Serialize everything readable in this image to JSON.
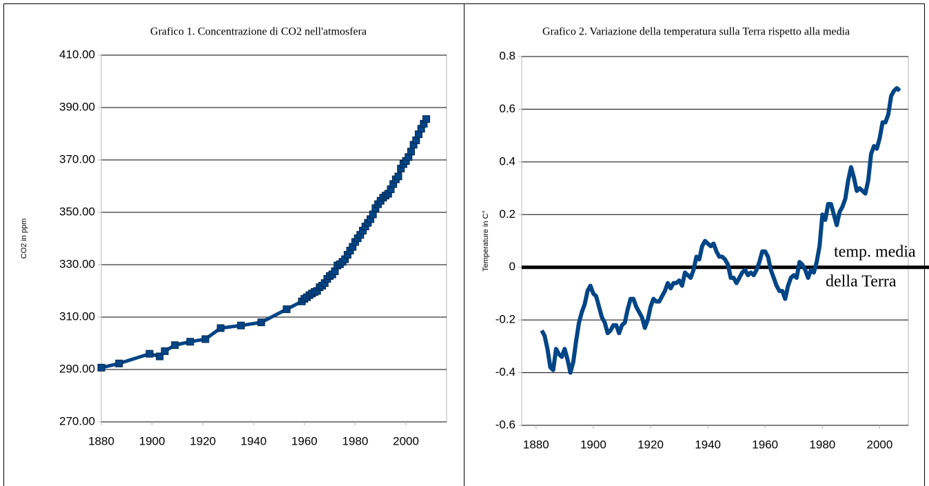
{
  "chart_data": [
    {
      "type": "line",
      "title": "Grafico 1. Concentrazione di CO2 nell'atmosfera",
      "y_label": "CO2  in ppm",
      "color": "#004586",
      "markers": true,
      "grid": true,
      "x": [
        1880,
        1887,
        1899,
        1903,
        1905,
        1909,
        1915,
        1921,
        1927,
        1935,
        1943,
        1953,
        1959,
        1960,
        1961,
        1962,
        1963,
        1964,
        1965,
        1966,
        1967,
        1968,
        1969,
        1970,
        1971,
        1972,
        1973,
        1974,
        1975,
        1976,
        1977,
        1978,
        1979,
        1980,
        1981,
        1982,
        1983,
        1984,
        1985,
        1986,
        1987,
        1988,
        1989,
        1990,
        1991,
        1992,
        1993,
        1994,
        1995,
        1996,
        1997,
        1998,
        1999,
        2000,
        2001,
        2002,
        2003,
        2004,
        2005,
        2006,
        2007,
        2008
      ],
      "values": [
        290.7,
        292.3,
        296,
        295,
        297,
        299.3,
        300.6,
        301.6,
        305.8,
        306.8,
        308,
        313,
        316,
        317,
        317.6,
        318.4,
        319,
        319.6,
        320,
        321.4,
        322,
        323,
        324.6,
        325.7,
        326.3,
        327.5,
        329.7,
        330.2,
        331.1,
        332.1,
        333.8,
        335.4,
        336.8,
        338.7,
        340.1,
        341.4,
        343,
        344.6,
        346,
        347.4,
        349.2,
        351.6,
        353.1,
        354.4,
        355.6,
        356.4,
        357.1,
        358.8,
        360.8,
        362.6,
        363.7,
        366.7,
        368.4,
        369.6,
        371.1,
        373.2,
        375.8,
        377.5,
        379.8,
        381.9,
        383.8,
        385.6
      ],
      "xlim": [
        1880,
        2016
      ],
      "xticks": [
        1880,
        1900,
        1920,
        1940,
        1960,
        1980,
        2000
      ],
      "ylim": [
        270,
        410
      ],
      "yticks": [
        {
          "value": 270,
          "label": "270.00"
        },
        {
          "value": 290,
          "label": "290.00"
        },
        {
          "value": 310,
          "label": "310.00"
        },
        {
          "value": 330,
          "label": "330.00"
        },
        {
          "value": 350,
          "label": "350.00"
        },
        {
          "value": 370,
          "label": "370.00"
        },
        {
          "value": 390,
          "label": "390.00"
        },
        {
          "value": 410,
          "label": "410.00"
        }
      ]
    },
    {
      "type": "line",
      "title": "Grafico 2. Variazione della temperatura sulla Terra rispetto alla media",
      "y_label": "Temperature in C°",
      "color": "#004586",
      "markers": false,
      "grid": true,
      "x": [
        1882,
        1883,
        1884,
        1885,
        1886,
        1887,
        1888,
        1889,
        1890,
        1891,
        1892,
        1893,
        1894,
        1895,
        1896,
        1897,
        1898,
        1899,
        1900,
        1901,
        1902,
        1903,
        1904,
        1905,
        1906,
        1907,
        1908,
        1909,
        1910,
        1911,
        1912,
        1913,
        1914,
        1915,
        1916,
        1917,
        1918,
        1919,
        1920,
        1921,
        1922,
        1923,
        1924,
        1925,
        1926,
        1927,
        1928,
        1929,
        1930,
        1931,
        1932,
        1933,
        1934,
        1935,
        1936,
        1937,
        1938,
        1939,
        1940,
        1941,
        1942,
        1943,
        1944,
        1945,
        1946,
        1947,
        1948,
        1949,
        1950,
        1951,
        1952,
        1953,
        1954,
        1955,
        1956,
        1957,
        1958,
        1959,
        1960,
        1961,
        1962,
        1963,
        1964,
        1965,
        1966,
        1967,
        1968,
        1969,
        1970,
        1971,
        1972,
        1973,
        1974,
        1975,
        1976,
        1977,
        1978,
        1979,
        1980,
        1981,
        1982,
        1983,
        1984,
        1985,
        1986,
        1987,
        1988,
        1989,
        1990,
        1991,
        1992,
        1993,
        1994,
        1995,
        1996,
        1997,
        1998,
        1999,
        2000,
        2001,
        2002,
        2003,
        2004,
        2005,
        2006,
        2007
      ],
      "values": [
        -0.24,
        -0.26,
        -0.31,
        -0.38,
        -0.39,
        -0.31,
        -0.33,
        -0.34,
        -0.31,
        -0.35,
        -0.4,
        -0.36,
        -0.28,
        -0.21,
        -0.17,
        -0.14,
        -0.09,
        -0.07,
        -0.1,
        -0.11,
        -0.15,
        -0.19,
        -0.21,
        -0.25,
        -0.24,
        -0.22,
        -0.22,
        -0.25,
        -0.22,
        -0.21,
        -0.16,
        -0.12,
        -0.12,
        -0.15,
        -0.17,
        -0.19,
        -0.23,
        -0.2,
        -0.15,
        -0.12,
        -0.13,
        -0.13,
        -0.11,
        -0.09,
        -0.06,
        -0.08,
        -0.06,
        -0.06,
        -0.05,
        -0.07,
        -0.02,
        -0.03,
        -0.04,
        -0.01,
        0.04,
        0.03,
        0.08,
        0.1,
        0.09,
        0.08,
        0.09,
        0.06,
        0.04,
        0.04,
        0.03,
        0.01,
        -0.04,
        -0.04,
        -0.06,
        -0.04,
        -0.02,
        -0.01,
        -0.03,
        -0.02,
        -0.03,
        -0.01,
        0.02,
        0.06,
        0.06,
        0.04,
        -0.01,
        -0.04,
        -0.07,
        -0.09,
        -0.09,
        -0.12,
        -0.07,
        -0.04,
        -0.03,
        -0.04,
        0.02,
        0.01,
        -0.01,
        -0.04,
        -0.01,
        -0.02,
        0.02,
        0.08,
        0.2,
        0.18,
        0.24,
        0.24,
        0.2,
        0.16,
        0.21,
        0.23,
        0.26,
        0.33,
        0.38,
        0.34,
        0.29,
        0.3,
        0.29,
        0.28,
        0.33,
        0.43,
        0.46,
        0.45,
        0.49,
        0.55,
        0.55,
        0.58,
        0.65,
        0.67,
        0.68,
        0.67
      ],
      "xlim": [
        1875,
        2010
      ],
      "xticks": [
        1880,
        1900,
        1920,
        1940,
        1960,
        1980,
        2000
      ],
      "ylim": [
        -0.6,
        0.8
      ],
      "yticks": [
        -0.6,
        -0.4,
        -0.2,
        0,
        0.2,
        0.4,
        0.6,
        0.8
      ],
      "hline": 0,
      "annotation": [
        "temp. media",
        "della Terra"
      ]
    }
  ]
}
